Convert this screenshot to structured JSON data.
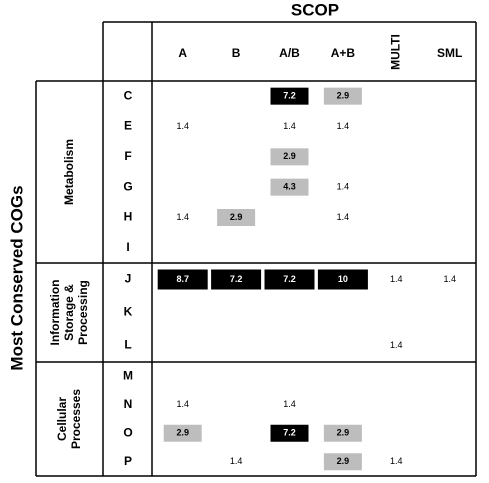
{
  "title": "SCOP",
  "side_title": "Most Conserved COGs",
  "columns": [
    "A",
    "B",
    "A/B",
    "A+B",
    "MULTI",
    "SML"
  ],
  "groups": [
    {
      "label": [
        "Metabolism"
      ],
      "rows": [
        {
          "label": "C",
          "cells": [
            null,
            null,
            {
              "text": "7.2",
              "shade": "black"
            },
            {
              "text": "2.9",
              "shade": "gray"
            },
            null,
            null
          ]
        },
        {
          "label": "E",
          "cells": [
            {
              "text": "1.4"
            },
            null,
            {
              "text": "1.4"
            },
            {
              "text": "1.4"
            },
            null,
            null
          ]
        },
        {
          "label": "F",
          "cells": [
            null,
            null,
            {
              "text": "2.9",
              "shade": "gray"
            },
            null,
            null,
            null
          ]
        },
        {
          "label": "G",
          "cells": [
            null,
            null,
            {
              "text": "4.3",
              "shade": "gray"
            },
            {
              "text": "1.4"
            },
            null,
            null
          ]
        },
        {
          "label": "H",
          "cells": [
            {
              "text": "1.4"
            },
            {
              "text": "2.9",
              "shade": "gray"
            },
            null,
            {
              "text": "1.4"
            },
            null,
            null
          ]
        },
        {
          "label": "I",
          "cells": [
            null,
            null,
            null,
            null,
            null,
            null
          ]
        }
      ]
    },
    {
      "label": [
        "Information",
        "Storage &",
        "Processing"
      ],
      "rows": [
        {
          "label": "J",
          "cells": [
            {
              "text": "8.7",
              "shade": "black"
            },
            {
              "text": "7.2",
              "shade": "black"
            },
            {
              "text": "7.2",
              "shade": "black"
            },
            {
              "text": "10",
              "shade": "black"
            },
            {
              "text": "1.4"
            },
            {
              "text": "1.4"
            }
          ]
        },
        {
          "label": "K",
          "cells": [
            null,
            null,
            null,
            null,
            null,
            null
          ]
        },
        {
          "label": "L",
          "cells": [
            null,
            null,
            null,
            null,
            {
              "text": "1.4"
            },
            null
          ]
        }
      ]
    },
    {
      "label": [
        "Cellular",
        "Processes"
      ],
      "rows": [
        {
          "label": "M",
          "cells": [
            null,
            null,
            null,
            null,
            null,
            null
          ]
        },
        {
          "label": "N",
          "cells": [
            {
              "text": "1.4"
            },
            null,
            {
              "text": "1.4"
            },
            null,
            null,
            null
          ]
        },
        {
          "label": "O",
          "cells": [
            {
              "text": "2.9",
              "shade": "gray"
            },
            null,
            {
              "text": "7.2",
              "shade": "black"
            },
            {
              "text": "2.9",
              "shade": "gray"
            },
            null,
            null
          ]
        },
        {
          "label": "P",
          "cells": [
            null,
            {
              "text": "1.4"
            },
            null,
            {
              "text": "2.9",
              "shade": "gray"
            },
            {
              "text": "1.4"
            },
            null
          ]
        }
      ]
    }
  ]
}
